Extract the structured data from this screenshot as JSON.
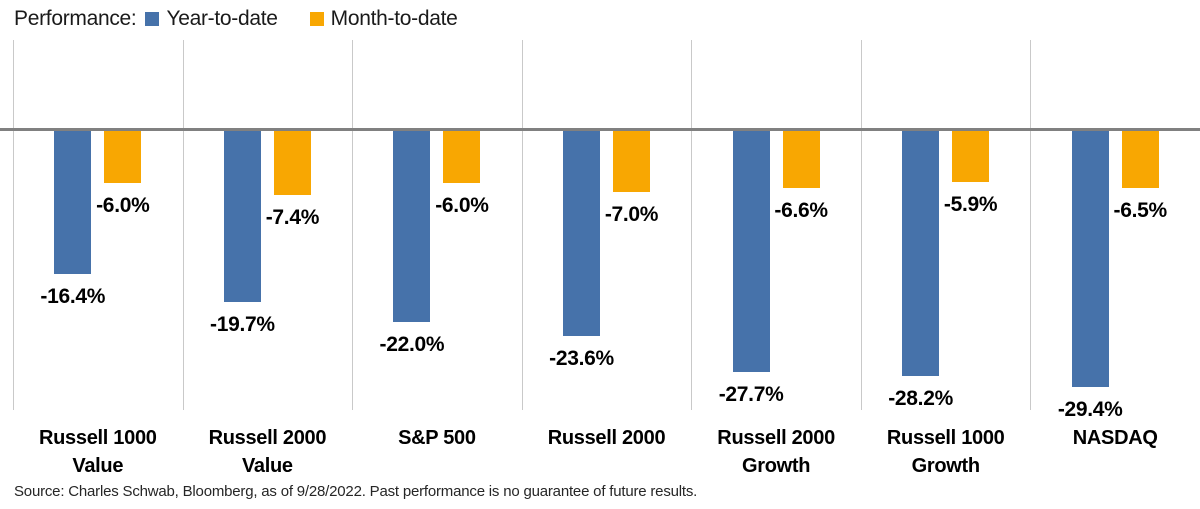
{
  "legend": {
    "title": "Performance:",
    "items": [
      {
        "label": "Year-to-date",
        "color": "#4672aa"
      },
      {
        "label": "Month-to-date",
        "color": "#f8a702"
      }
    ]
  },
  "chart_data": {
    "type": "bar",
    "orientation": "vertical",
    "categories": [
      "Russell 1000 Value",
      "Russell 2000 Value",
      "S&P 500",
      "Russell 2000",
      "Russell 2000 Growth",
      "Russell 1000 Growth",
      "NASDAQ"
    ],
    "category_lines": [
      [
        "Russell 1000",
        "Value"
      ],
      [
        "Russell 2000",
        "Value"
      ],
      [
        "S&P 500"
      ],
      [
        "Russell 2000"
      ],
      [
        "Russell 2000",
        "Growth"
      ],
      [
        "Russell 1000",
        "Growth"
      ],
      [
        "NASDAQ"
      ]
    ],
    "series": [
      {
        "name": "Year-to-date",
        "color": "#4672aa",
        "values": [
          -16.4,
          -19.7,
          -22.0,
          -23.6,
          -27.7,
          -28.2,
          -29.4
        ]
      },
      {
        "name": "Month-to-date",
        "color": "#f8a702",
        "values": [
          -6.0,
          -7.4,
          -6.0,
          -7.0,
          -6.6,
          -5.9,
          -6.5
        ]
      }
    ],
    "value_label_suffix": "%",
    "baseline": 0,
    "ylim": [
      -32,
      4
    ],
    "grid": "vertical-group-separators",
    "zero_line_color": "#808080",
    "separator_color": "#c9c9c9",
    "legend_position": "top-left",
    "title": "",
    "xlabel": "",
    "ylabel": ""
  },
  "source": {
    "text": "Source: Charles Schwab, Bloomberg, as of 9/28/2022.  Past performance is no guarantee of future results."
  }
}
